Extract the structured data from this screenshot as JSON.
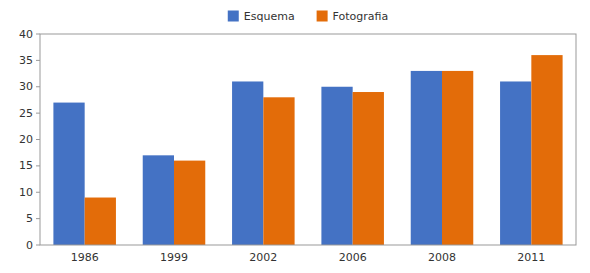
{
  "chart_data": {
    "type": "bar",
    "categories": [
      "1986",
      "1999",
      "2002",
      "2006",
      "2008",
      "2011"
    ],
    "series": [
      {
        "name": "Esquema",
        "color": "#4472C4",
        "values": [
          27,
          17,
          31,
          30,
          33,
          31
        ]
      },
      {
        "name": "Fotografia",
        "color": "#E36C09",
        "values": [
          9,
          16,
          28,
          29,
          33,
          36
        ]
      }
    ],
    "ylim": [
      0,
      40
    ],
    "yticks": [
      0,
      5,
      10,
      15,
      20,
      25,
      30,
      35,
      40
    ],
    "grid": false,
    "legend": "top"
  }
}
